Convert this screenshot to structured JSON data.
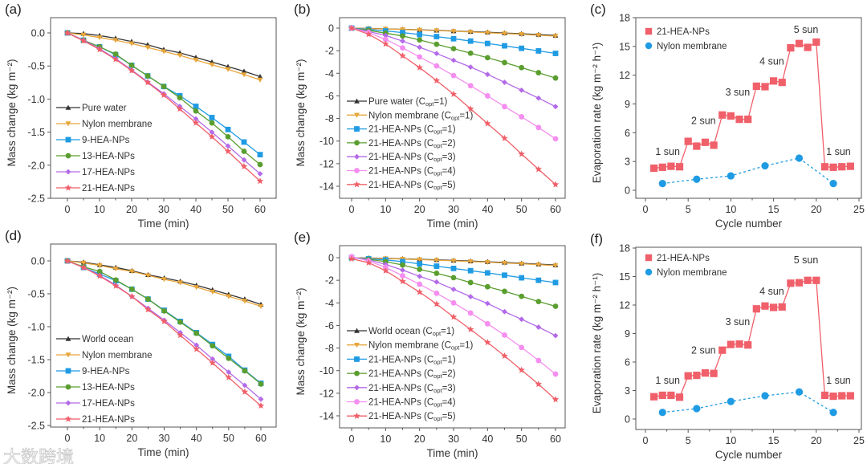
{
  "watermark": "大数跨境",
  "chart_data": [
    {
      "panel": "(a)",
      "type": "line",
      "xlabel": "Time (min)",
      "ylabel": "Mass change (kg m⁻²)",
      "xlim": [
        -5,
        65
      ],
      "ylim": [
        -2.5,
        0.23
      ],
      "xticks": [
        0,
        10,
        20,
        30,
        40,
        50,
        60
      ],
      "xtick_labels": [
        "0",
        "10",
        "20",
        "30",
        "40",
        "50",
        "60"
      ],
      "yticks": [
        0,
        -0.5,
        -1,
        -1.5,
        -2,
        -2.5
      ],
      "ytick_labels": [
        "0.0",
        "-0.5",
        "-1.0",
        "-1.5",
        "-2.0",
        "-2.5"
      ],
      "legend": "bottom-left",
      "x": [
        0,
        5,
        10,
        15,
        20,
        25,
        30,
        35,
        40,
        45,
        50,
        55,
        60
      ],
      "series": [
        {
          "name": "Pure water",
          "color": "#333333",
          "marker": "triangle-up",
          "values": [
            0,
            -0.01,
            -0.04,
            -0.08,
            -0.13,
            -0.18,
            -0.25,
            -0.3,
            -0.37,
            -0.44,
            -0.51,
            -0.58,
            -0.66
          ]
        },
        {
          "name": "Nylon membrane",
          "color": "#e8a63a",
          "marker": "triangle-down",
          "values": [
            0,
            -0.03,
            -0.07,
            -0.11,
            -0.16,
            -0.22,
            -0.28,
            -0.34,
            -0.41,
            -0.48,
            -0.55,
            -0.63,
            -0.71
          ]
        },
        {
          "name": "9-HEA-NPs",
          "color": "#1f9be3",
          "marker": "square",
          "values": [
            0,
            -0.11,
            -0.21,
            -0.33,
            -0.49,
            -0.65,
            -0.81,
            -0.95,
            -1.11,
            -1.28,
            -1.46,
            -1.65,
            -1.84
          ]
        },
        {
          "name": "13-HEA-NPs",
          "color": "#5a9e2f",
          "marker": "circle",
          "values": [
            0,
            -0.11,
            -0.21,
            -0.32,
            -0.49,
            -0.65,
            -0.81,
            -0.98,
            -1.18,
            -1.36,
            -1.57,
            -1.79,
            -1.99
          ]
        },
        {
          "name": "17-HEA-NPs",
          "color": "#b36ae8",
          "marker": "diamond",
          "values": [
            0,
            -0.11,
            -0.24,
            -0.39,
            -0.56,
            -0.74,
            -0.92,
            -1.11,
            -1.3,
            -1.5,
            -1.71,
            -1.92,
            -2.13
          ]
        },
        {
          "name": "21-HEA-NPs",
          "color": "#f0606a",
          "marker": "star",
          "values": [
            0,
            -0.12,
            -0.25,
            -0.4,
            -0.57,
            -0.75,
            -0.94,
            -1.15,
            -1.36,
            -1.57,
            -1.79,
            -2.02,
            -2.24
          ]
        }
      ]
    },
    {
      "panel": "(b)",
      "type": "line",
      "xlabel": "Time (min)",
      "ylabel": "Mass change (kg m⁻²)",
      "xlim": [
        -5,
        65
      ],
      "ylim": [
        -15,
        0.8
      ],
      "xticks": [
        0,
        10,
        20,
        30,
        40,
        50,
        60
      ],
      "xtick_labels": [
        "0",
        "10",
        "20",
        "30",
        "40",
        "50",
        "60"
      ],
      "yticks": [
        0,
        -2,
        -4,
        -6,
        -8,
        -10,
        -12,
        -14
      ],
      "ytick_labels": [
        "0",
        "-2",
        "-4",
        "-6",
        "-8",
        "-10",
        "-12",
        "-14"
      ],
      "legend": "bottom-left",
      "x": [
        0,
        5,
        10,
        15,
        20,
        25,
        30,
        35,
        40,
        45,
        50,
        55,
        60
      ],
      "series": [
        {
          "name": "Pure water (Copt=1)",
          "color": "#333333",
          "marker": "triangle-up",
          "values": [
            0,
            -0.03,
            -0.07,
            -0.11,
            -0.15,
            -0.2,
            -0.26,
            -0.31,
            -0.37,
            -0.44,
            -0.5,
            -0.57,
            -0.65
          ]
        },
        {
          "name": "Nylon membrane (Copt=1)",
          "color": "#e8a63a",
          "marker": "triangle-down",
          "values": [
            0,
            -0.04,
            -0.08,
            -0.12,
            -0.17,
            -0.22,
            -0.28,
            -0.34,
            -0.41,
            -0.48,
            -0.55,
            -0.63,
            -0.71
          ]
        },
        {
          "name": "21-HEA-NPs (Copt=1)",
          "color": "#1f9be3",
          "marker": "square",
          "values": [
            0,
            -0.12,
            -0.25,
            -0.4,
            -0.57,
            -0.75,
            -0.94,
            -1.15,
            -1.36,
            -1.57,
            -1.79,
            -2.02,
            -2.24
          ]
        },
        {
          "name": "21-HEA-NPs (Copt=2)",
          "color": "#5a9e2f",
          "marker": "circle",
          "values": [
            0,
            -0.2,
            -0.45,
            -0.7,
            -1.05,
            -1.43,
            -1.82,
            -2.22,
            -2.62,
            -3.05,
            -3.5,
            -3.95,
            -4.42
          ]
        },
        {
          "name": "21-HEA-NPs (Copt=3)",
          "color": "#b36ae8",
          "marker": "diamond",
          "values": [
            0,
            -0.3,
            -0.65,
            -1.15,
            -1.7,
            -2.25,
            -2.85,
            -3.45,
            -4.1,
            -4.8,
            -5.5,
            -6.2,
            -6.95
          ]
        },
        {
          "name": "21-HEA-NPs (Copt=4)",
          "color": "#f58ef0",
          "marker": "circle",
          "values": [
            0,
            -0.4,
            -1.0,
            -1.75,
            -2.55,
            -3.35,
            -4.2,
            -5.1,
            -6.0,
            -6.95,
            -7.85,
            -8.8,
            -9.8
          ]
        },
        {
          "name": "21-HEA-NPs (Copt=5)",
          "color": "#f0606a",
          "marker": "star",
          "values": [
            0,
            -0.55,
            -1.4,
            -2.45,
            -3.5,
            -4.65,
            -5.85,
            -7.15,
            -8.45,
            -9.75,
            -11.15,
            -12.5,
            -13.85
          ]
        }
      ]
    },
    {
      "panel": "(c)",
      "type": "scatter",
      "xlabel": "Cycle number",
      "ylabel": "Evaporation rate (kg m⁻² h⁻¹)",
      "xlim": [
        -1.2,
        25
      ],
      "ylim": [
        -0.9,
        18
      ],
      "xticks": [
        0,
        5,
        10,
        15,
        20,
        25
      ],
      "xtick_labels": [
        "0",
        "5",
        "10",
        "15",
        "20",
        "25"
      ],
      "yticks": [
        0,
        3,
        6,
        9,
        12,
        15,
        18
      ],
      "ytick_labels": [
        "0",
        "3",
        "6",
        "9",
        "12",
        "15",
        "18"
      ],
      "legend": "top-left",
      "series": [
        {
          "name": "21-HEA-NPs",
          "color": "#f0606a",
          "marker": "square",
          "line": "solid",
          "x": [
            1,
            2,
            3,
            4,
            5,
            6,
            7,
            8,
            9,
            10,
            11,
            12,
            13,
            14,
            15,
            16,
            17,
            18,
            19,
            20,
            21,
            22,
            23,
            24
          ],
          "values": [
            2.3,
            2.4,
            2.5,
            2.45,
            5.1,
            4.6,
            5.0,
            4.7,
            7.85,
            7.75,
            7.4,
            7.4,
            10.85,
            10.8,
            11.4,
            11.25,
            14.85,
            15.3,
            14.9,
            15.45,
            2.45,
            2.4,
            2.45,
            2.5
          ]
        },
        {
          "name": "Nylon membrane",
          "color": "#1f9be3",
          "marker": "circle",
          "line": "dashed",
          "x": [
            2,
            6,
            10,
            14,
            18,
            22
          ],
          "values": [
            0.7,
            1.15,
            1.5,
            2.55,
            3.35,
            0.7
          ]
        }
      ],
      "annotations": [
        {
          "text": "1 sun",
          "x": 2.6,
          "y": 3.7
        },
        {
          "text": "2 sun",
          "x": 6.8,
          "y": 6.9
        },
        {
          "text": "3 sun",
          "x": 10.8,
          "y": 9.9
        },
        {
          "text": "4 sun",
          "x": 14.8,
          "y": 13.1
        },
        {
          "text": "5 sun",
          "x": 18.8,
          "y": 16.4
        },
        {
          "text": "1 sun",
          "x": 22.6,
          "y": 3.7
        }
      ]
    },
    {
      "panel": "(d)",
      "type": "line",
      "xlabel": "Time (min)",
      "ylabel": "Mass change (kg m⁻²)",
      "xlim": [
        -5,
        65
      ],
      "ylim": [
        -2.5,
        0.23
      ],
      "xticks": [
        0,
        10,
        20,
        30,
        40,
        50,
        60
      ],
      "xtick_labels": [
        "0",
        "10",
        "20",
        "30",
        "40",
        "50",
        "60"
      ],
      "yticks": [
        0,
        -0.5,
        -1,
        -1.5,
        -2,
        -2.5
      ],
      "ytick_labels": [
        "0.0",
        "-0.5",
        "-1.0",
        "-1.5",
        "-2.0",
        "-2.5"
      ],
      "legend": "bottom-left",
      "x": [
        0,
        5,
        10,
        15,
        20,
        25,
        30,
        35,
        40,
        45,
        50,
        55,
        60
      ],
      "series": [
        {
          "name": "World ocean",
          "color": "#333333",
          "marker": "triangle-up",
          "values": [
            0,
            -0.02,
            -0.06,
            -0.1,
            -0.15,
            -0.21,
            -0.26,
            -0.31,
            -0.37,
            -0.44,
            -0.51,
            -0.58,
            -0.66
          ]
        },
        {
          "name": "Nylon membrane",
          "color": "#e8a63a",
          "marker": "triangle-down",
          "values": [
            0,
            -0.03,
            -0.07,
            -0.12,
            -0.16,
            -0.22,
            -0.28,
            -0.33,
            -0.4,
            -0.47,
            -0.54,
            -0.61,
            -0.69
          ]
        },
        {
          "name": "9-HEA-NPs",
          "color": "#1f9be3",
          "marker": "square",
          "values": [
            0,
            -0.1,
            -0.2,
            -0.3,
            -0.43,
            -0.58,
            -0.75,
            -0.92,
            -1.09,
            -1.27,
            -1.45,
            -1.66,
            -1.86
          ]
        },
        {
          "name": "13-HEA-NPs",
          "color": "#5a9e2f",
          "marker": "circle",
          "values": [
            0,
            -0.09,
            -0.16,
            -0.29,
            -0.43,
            -0.58,
            -0.76,
            -0.93,
            -1.1,
            -1.29,
            -1.48,
            -1.67,
            -1.87
          ]
        },
        {
          "name": "17-HEA-NPs",
          "color": "#b36ae8",
          "marker": "diamond",
          "values": [
            0,
            -0.1,
            -0.22,
            -0.37,
            -0.54,
            -0.72,
            -0.9,
            -1.09,
            -1.28,
            -1.49,
            -1.69,
            -1.89,
            -2.1
          ]
        },
        {
          "name": "21-HEA-NPs",
          "color": "#f0606a",
          "marker": "star",
          "values": [
            0,
            -0.1,
            -0.23,
            -0.38,
            -0.54,
            -0.74,
            -0.92,
            -1.13,
            -1.34,
            -1.55,
            -1.77,
            -1.99,
            -2.2
          ]
        }
      ]
    },
    {
      "panel": "(e)",
      "type": "line",
      "xlabel": "Time (min)",
      "ylabel": "Mass change (kg m⁻²)",
      "xlim": [
        -5,
        65
      ],
      "ylim": [
        -15,
        0.8
      ],
      "xticks": [
        0,
        10,
        20,
        30,
        40,
        50,
        60
      ],
      "xtick_labels": [
        "0",
        "10",
        "20",
        "30",
        "40",
        "50",
        "60"
      ],
      "yticks": [
        0,
        -2,
        -4,
        -6,
        -8,
        -10,
        -12,
        -14
      ],
      "ytick_labels": [
        "0",
        "-2",
        "-4",
        "-6",
        "-8",
        "-10",
        "-12",
        "-14"
      ],
      "legend": "bottom-left",
      "x": [
        0,
        5,
        10,
        15,
        20,
        25,
        30,
        35,
        40,
        45,
        50,
        55,
        60
      ],
      "series": [
        {
          "name": "World ocean (Copt=1)",
          "color": "#333333",
          "marker": "triangle-up",
          "values": [
            0,
            -0.03,
            -0.06,
            -0.1,
            -0.14,
            -0.19,
            -0.24,
            -0.3,
            -0.36,
            -0.42,
            -0.5,
            -0.57,
            -0.65
          ]
        },
        {
          "name": "Nylon membrane (Copt=1)",
          "color": "#e8a63a",
          "marker": "triangle-down",
          "values": [
            0,
            -0.04,
            -0.08,
            -0.12,
            -0.17,
            -0.22,
            -0.28,
            -0.34,
            -0.4,
            -0.47,
            -0.54,
            -0.62,
            -0.7
          ]
        },
        {
          "name": "21-HEA-NPs (Copt=1)",
          "color": "#1f9be3",
          "marker": "square",
          "values": [
            0,
            -0.1,
            -0.2,
            -0.35,
            -0.55,
            -0.75,
            -0.95,
            -1.15,
            -1.35,
            -1.55,
            -1.78,
            -2.0,
            -2.2
          ]
        },
        {
          "name": "21-HEA-NPs (Copt=2)",
          "color": "#5a9e2f",
          "marker": "circle",
          "values": [
            0,
            -0.15,
            -0.35,
            -0.65,
            -1.03,
            -1.38,
            -1.77,
            -2.2,
            -2.57,
            -2.98,
            -3.42,
            -3.88,
            -4.3
          ]
        },
        {
          "name": "21-HEA-NPs (Copt=3)",
          "color": "#b36ae8",
          "marker": "diamond",
          "values": [
            0,
            -0.2,
            -0.6,
            -1.1,
            -1.65,
            -2.15,
            -2.8,
            -3.45,
            -4.05,
            -4.78,
            -5.45,
            -6.15,
            -6.9
          ]
        },
        {
          "name": "21-HEA-NPs (Copt=4)",
          "color": "#f58ef0",
          "marker": "circle",
          "values": [
            0.1,
            -0.3,
            -0.85,
            -1.6,
            -2.35,
            -3.15,
            -4.0,
            -4.9,
            -5.85,
            -6.85,
            -7.95,
            -9.1,
            -10.3
          ]
        },
        {
          "name": "21-HEA-NPs (Copt=5)",
          "color": "#f0606a",
          "marker": "star",
          "values": [
            -0.1,
            -0.45,
            -1.15,
            -2.1,
            -3.05,
            -4.1,
            -5.25,
            -6.35,
            -7.5,
            -8.7,
            -9.95,
            -11.2,
            -12.55
          ]
        }
      ]
    },
    {
      "panel": "(f)",
      "type": "scatter",
      "xlabel": "Cycle number",
      "ylabel": "Evaporation rate (kg m⁻² h⁻¹)",
      "xlim": [
        -1.2,
        25
      ],
      "ylim": [
        -0.9,
        18
      ],
      "xticks": [
        0,
        5,
        10,
        15,
        20,
        25
      ],
      "xtick_labels": [
        "0",
        "5",
        "10",
        "15",
        "20",
        "25"
      ],
      "yticks": [
        0,
        3,
        6,
        9,
        12,
        15,
        18
      ],
      "ytick_labels": [
        "0",
        "3",
        "6",
        "9",
        "12",
        "15",
        "18"
      ],
      "legend": "top-left",
      "series": [
        {
          "name": "21-HEA-NPs",
          "color": "#f0606a",
          "marker": "square",
          "line": "solid",
          "x": [
            1,
            2,
            3,
            4,
            5,
            6,
            7,
            8,
            9,
            10,
            11,
            12,
            13,
            14,
            15,
            16,
            17,
            18,
            19,
            20,
            21,
            22,
            23,
            24
          ],
          "values": [
            2.35,
            2.5,
            2.5,
            2.3,
            4.55,
            4.6,
            4.85,
            4.8,
            7.25,
            7.85,
            7.9,
            7.8,
            11.6,
            11.9,
            11.75,
            11.8,
            14.3,
            14.35,
            14.6,
            14.6,
            2.5,
            2.4,
            2.45,
            2.45
          ]
        },
        {
          "name": "Nylon membrane",
          "color": "#1f9be3",
          "marker": "circle",
          "line": "dashed",
          "x": [
            2,
            6,
            10,
            14,
            18,
            22
          ],
          "values": [
            0.7,
            1.1,
            1.85,
            2.45,
            2.85,
            0.7
          ]
        }
      ],
      "annotations": [
        {
          "text": "1 sun",
          "x": 2.6,
          "y": 3.7
        },
        {
          "text": "2 sun",
          "x": 6.8,
          "y": 6.9
        },
        {
          "text": "3 sun",
          "x": 10.8,
          "y": 9.9
        },
        {
          "text": "4 sun",
          "x": 14.8,
          "y": 13.1
        },
        {
          "text": "5 sun",
          "x": 18.8,
          "y": 16.4
        },
        {
          "text": "1 sun",
          "x": 22.6,
          "y": 3.7
        }
      ]
    }
  ]
}
